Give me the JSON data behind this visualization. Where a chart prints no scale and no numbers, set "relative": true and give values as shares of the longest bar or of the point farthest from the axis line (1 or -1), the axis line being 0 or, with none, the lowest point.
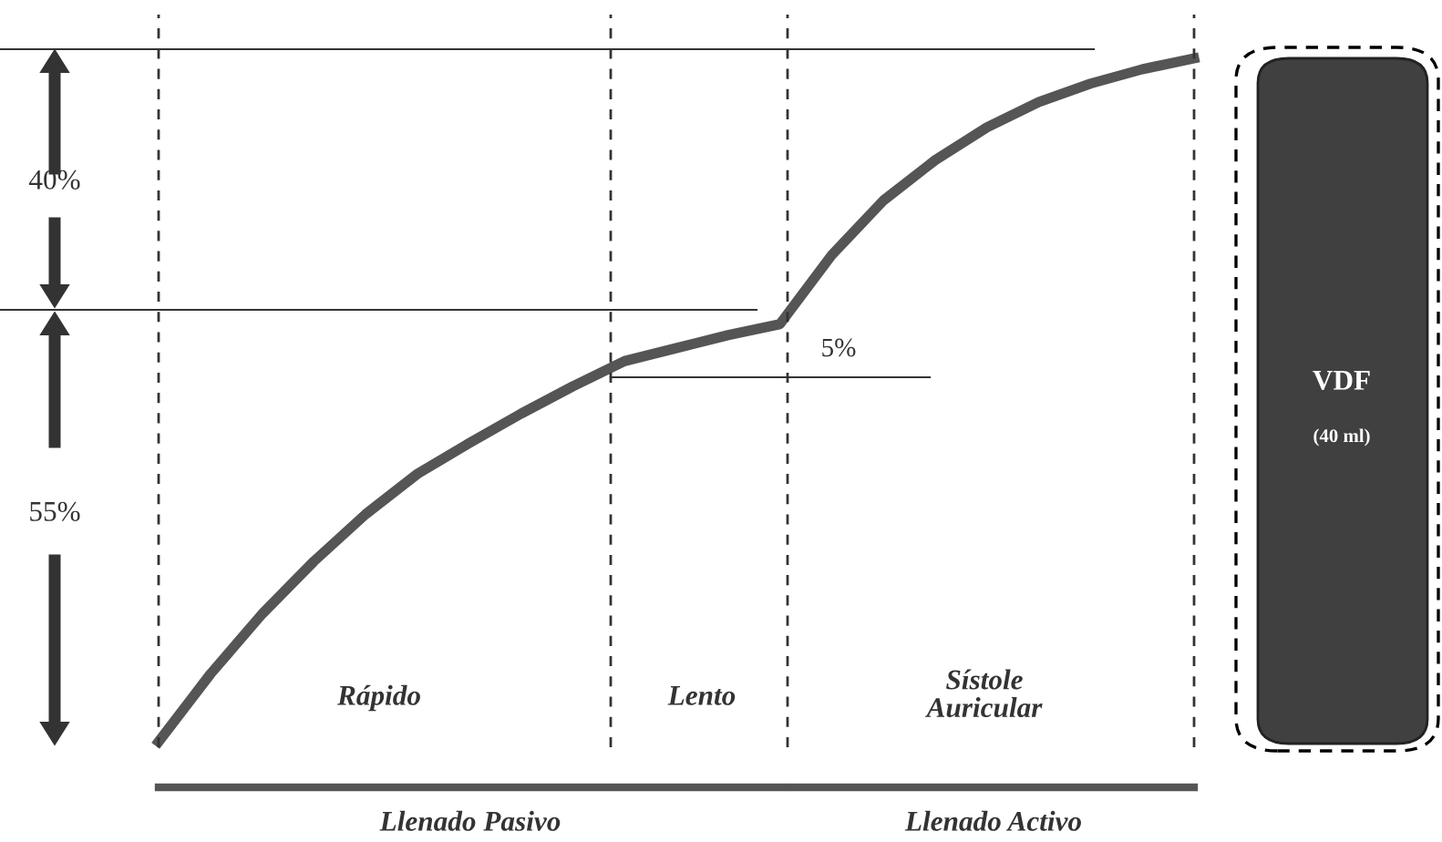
{
  "chart_data": {
    "type": "line",
    "relative": true,
    "categories": [
      null,
      null,
      null,
      null,
      null,
      null,
      null,
      null,
      null,
      null,
      null,
      null,
      null,
      null,
      null,
      null,
      null,
      null,
      null,
      null,
      null
    ],
    "series": [
      {
        "color": "#555555",
        "values": [
          0,
          0.099,
          0.187,
          0.264,
          0.333,
          0.392,
          0.437,
          0.48,
          0.52,
          0.557,
          0.576,
          0.595,
          0.611,
          0.712,
          0.792,
          0.851,
          0.899,
          0.936,
          0.963,
          0.984,
          1
        ]
      }
    ],
    "annotations": [
      "40%",
      "55%",
      "5%",
      "Rápido",
      "Lento",
      "Sístole\nAuricular",
      "Llenado Pasivo",
      "Llenado Activo",
      "VDF",
      "(40 ml)"
    ],
    "ref_lines": [
      {
        "axis": "y",
        "value": 0.632,
        "color": "#333333"
      }
    ],
    "marker": "none",
    "line_style": "solid"
  }
}
